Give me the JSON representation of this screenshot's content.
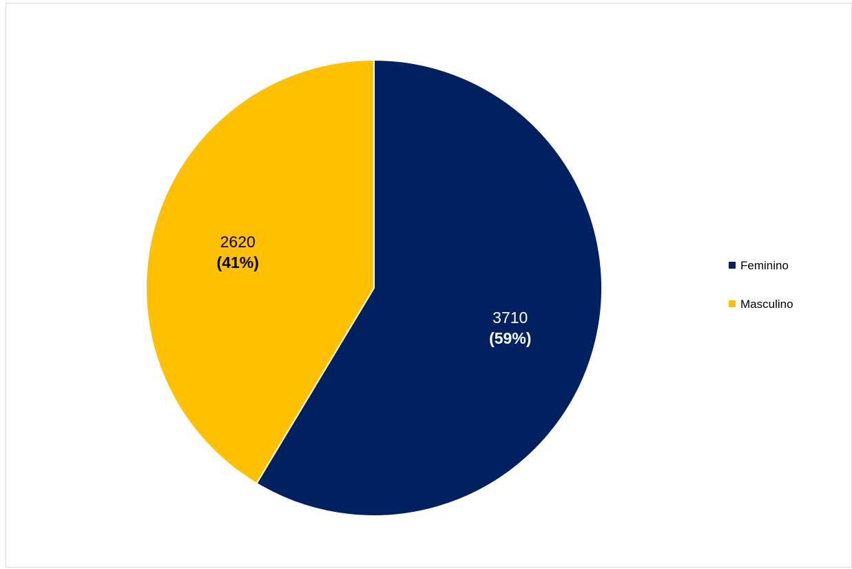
{
  "chart_data": {
    "type": "pie",
    "title": "",
    "slices": [
      {
        "label": "Feminino",
        "value": 3710,
        "percent_label": "(59%)",
        "value_label": "3710",
        "color": "#002060",
        "text_color": "#ffffff"
      },
      {
        "label": "Masculino",
        "value": 2620,
        "percent_label": "(41%)",
        "value_label": "2620",
        "color": "#FFC000",
        "text_color": "#000000"
      }
    ],
    "legend_position": "right"
  }
}
